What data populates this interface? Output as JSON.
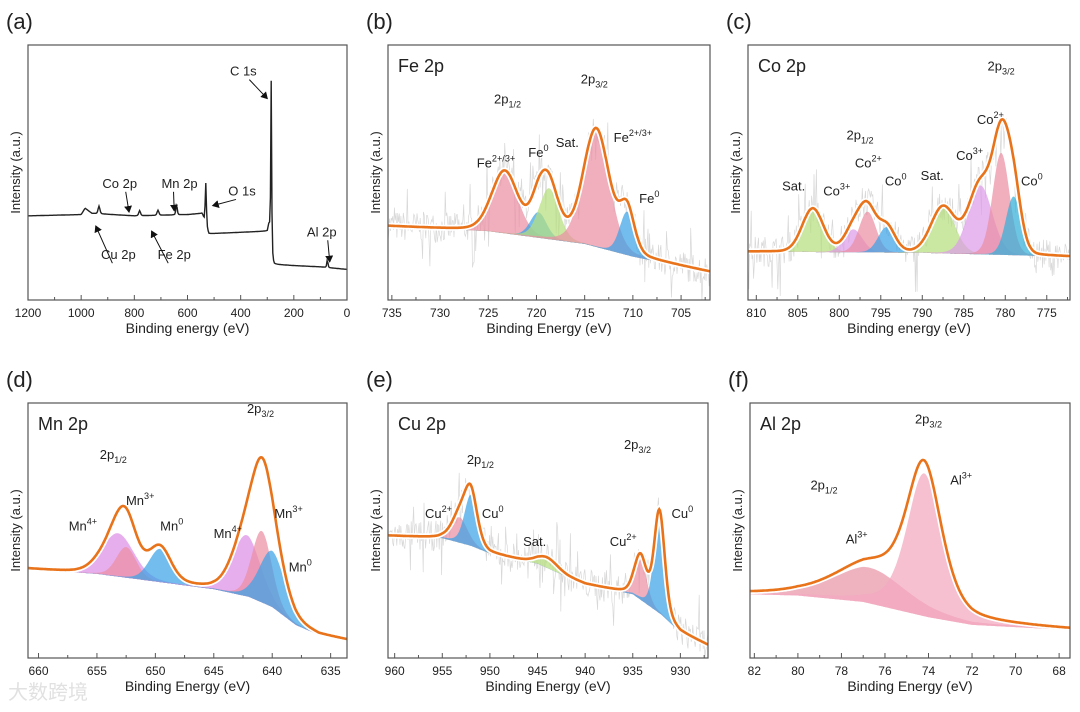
{
  "watermark": "大数跨境",
  "chart_data": [
    {
      "panel": "(a)",
      "type": "line",
      "title": "",
      "xlabel": "Binding energy (eV)",
      "ylabel": "Intensity (a.u.)",
      "xlim": [
        1200,
        0
      ],
      "ylim": [
        0,
        1
      ],
      "xticks": [
        1200,
        1000,
        800,
        600,
        400,
        200,
        0
      ],
      "fill": false,
      "line_color": "#222222",
      "noise": false,
      "eta": 0.3,
      "background": [
        [
          1200,
          0.33
        ],
        [
          1000,
          0.335
        ],
        [
          985,
          0.36
        ],
        [
          960,
          0.34
        ],
        [
          800,
          0.33
        ],
        [
          600,
          0.335
        ],
        [
          545,
          0.34
        ],
        [
          528,
          0.29
        ],
        [
          520,
          0.26
        ],
        [
          300,
          0.27
        ],
        [
          292,
          0.3
        ],
        [
          285,
          0.2
        ],
        [
          275,
          0.14
        ],
        [
          200,
          0.135
        ],
        [
          100,
          0.13
        ],
        [
          0,
          0.12
        ]
      ],
      "components": [
        {
          "name": "C 1s",
          "center": 285,
          "height": 0.66,
          "fwhm": 4
        },
        {
          "name": "O 1s",
          "center": 531,
          "height": 0.16,
          "fwhm": 5
        },
        {
          "name": "Cu 2p",
          "center": 933,
          "height": 0.03,
          "fwhm": 8
        },
        {
          "name": "Co 2p",
          "center": 780,
          "height": 0.02,
          "fwhm": 8
        },
        {
          "name": "Mn 2p",
          "center": 641,
          "height": 0.04,
          "fwhm": 6
        },
        {
          "name": "Fe 2p",
          "center": 711,
          "height": 0.02,
          "fwhm": 8
        },
        {
          "name": "Al 2p",
          "center": 74,
          "height": 0.03,
          "fwhm": 5
        }
      ],
      "annotations": [
        {
          "text": "C 1s",
          "x": 390,
          "y": 0.88,
          "arrow_to": [
            300,
            0.79
          ]
        },
        {
          "text": "O 1s",
          "x": 395,
          "y": 0.41,
          "arrow_to": [
            505,
            0.37
          ]
        },
        {
          "text": "Mn 2p",
          "x": 630,
          "y": 0.44,
          "arrow_to": [
            650,
            0.35
          ]
        },
        {
          "text": "Co 2p",
          "x": 855,
          "y": 0.44,
          "arrow_to": [
            820,
            0.345
          ]
        },
        {
          "text": "Cu 2p",
          "x": 860,
          "y": 0.16,
          "arrow_to": [
            945,
            0.29
          ]
        },
        {
          "text": "Fe 2p",
          "x": 650,
          "y": 0.16,
          "arrow_to": [
            735,
            0.27
          ]
        },
        {
          "text": "Al 2p",
          "x": 95,
          "y": 0.25,
          "arrow_to": [
            65,
            0.15
          ]
        }
      ]
    },
    {
      "panel": "(b)",
      "type": "line",
      "title": "Fe 2p",
      "xlabel": "Binding Energy (eV)",
      "ylabel": "Intensity (a.u.)",
      "xlim": [
        735.4,
        702
      ],
      "ylim": [
        0,
        1
      ],
      "xticks": [
        735,
        730,
        725,
        720,
        715,
        710,
        705
      ],
      "fill": true,
      "line_color": "#e8731a",
      "noise": true,
      "eta": 0.2,
      "background": [
        [
          735.4,
          0.29
        ],
        [
          725,
          0.27
        ],
        [
          715,
          0.22
        ],
        [
          710,
          0.17
        ],
        [
          702,
          0.11
        ]
      ],
      "components": [
        {
          "name": "Fe2+/3+ 2p1/2",
          "center": 723.3,
          "height": 0.24,
          "fwhm": 3.2,
          "color": "#ec8fa3"
        },
        {
          "name": "Fe0 2p1/2",
          "center": 719.8,
          "height": 0.1,
          "fwhm": 2.0,
          "color": "#3ba3e6"
        },
        {
          "name": "Sat.",
          "center": 718.7,
          "height": 0.2,
          "fwhm": 2.4,
          "color": "#b6df7e"
        },
        {
          "name": "Fe2+/3+ 2p3/2",
          "center": 713.8,
          "height": 0.46,
          "fwhm": 3.2,
          "color": "#ec8fa3"
        },
        {
          "name": "Fe0 2p3/2",
          "center": 710.6,
          "height": 0.17,
          "fwhm": 1.8,
          "color": "#3ba3e6"
        }
      ],
      "annotations": [
        {
          "text": "2p",
          "sub": "1/2",
          "x": 723,
          "y": 0.77
        },
        {
          "text": "2p",
          "sub": "3/2",
          "x": 714,
          "y": 0.85
        },
        {
          "text": "Fe",
          "sup": "2+/3+",
          "x": 724.2,
          "y": 0.52
        },
        {
          "text": "Fe",
          "sup": "0",
          "x": 719.8,
          "y": 0.56
        },
        {
          "text": "Sat.",
          "x": 716.8,
          "y": 0.6
        },
        {
          "text": "Fe",
          "sup": "2+/3+",
          "x": 710,
          "y": 0.62
        },
        {
          "text": "Fe",
          "sup": "0",
          "x": 708.3,
          "y": 0.38
        }
      ]
    },
    {
      "panel": "(c)",
      "type": "line",
      "title": "Co 2p",
      "xlabel": "Binding energy (eV)",
      "ylabel": "Intensity (a.u.)",
      "xlim": [
        811,
        772.2
      ],
      "ylim": [
        0,
        1
      ],
      "xticks": [
        810,
        805,
        800,
        795,
        790,
        785,
        780,
        775
      ],
      "fill": true,
      "line_color": "#e8731a",
      "noise": true,
      "eta": 0.1,
      "background": [
        [
          811,
          0.19
        ],
        [
          790,
          0.185
        ],
        [
          772.2,
          0.17
        ]
      ],
      "components": [
        {
          "name": "Sat.",
          "center": 803.2,
          "height": 0.17,
          "fwhm": 3.0,
          "color": "#b6df7e"
        },
        {
          "name": "Co3+",
          "center": 798.3,
          "height": 0.09,
          "fwhm": 2.6,
          "color": "#de9de9"
        },
        {
          "name": "Co2+",
          "center": 796.6,
          "height": 0.16,
          "fwhm": 2.4,
          "color": "#ec8fa3"
        },
        {
          "name": "Co0",
          "center": 794.3,
          "height": 0.1,
          "fwhm": 2.4,
          "color": "#3ba3e6"
        },
        {
          "name": "Sat.",
          "center": 787.5,
          "height": 0.18,
          "fwhm": 3.4,
          "color": "#b6df7e"
        },
        {
          "name": "Co3+",
          "center": 783,
          "height": 0.27,
          "fwhm": 3.4,
          "color": "#de9de9"
        },
        {
          "name": "Co2+",
          "center": 780.5,
          "height": 0.4,
          "fwhm": 2.4,
          "color": "#ec8fa3"
        },
        {
          "name": "Co0",
          "center": 779,
          "height": 0.23,
          "fwhm": 2.2,
          "color": "#33b0d8"
        }
      ],
      "annotations": [
        {
          "text": "2p",
          "sub": "3/2",
          "x": 780.5,
          "y": 0.9
        },
        {
          "text": "2p",
          "sub": "1/2",
          "x": 797.5,
          "y": 0.63
        },
        {
          "text": "Sat.",
          "x": 805.5,
          "y": 0.43
        },
        {
          "text": "Co",
          "sup": "3+",
          "x": 800.3,
          "y": 0.41
        },
        {
          "text": "Co",
          "sup": "2+",
          "x": 796.5,
          "y": 0.52
        },
        {
          "text": "Co",
          "sup": "0",
          "x": 793.2,
          "y": 0.45
        },
        {
          "text": "Sat.",
          "x": 788.8,
          "y": 0.47
        },
        {
          "text": "Co",
          "sup": "3+",
          "x": 784.3,
          "y": 0.55
        },
        {
          "text": "Co",
          "sup": "2+",
          "x": 781.8,
          "y": 0.69
        },
        {
          "text": "Co",
          "sup": "0",
          "x": 776.8,
          "y": 0.45
        }
      ]
    },
    {
      "panel": "(d)",
      "type": "line",
      "title": "Mn 2p",
      "xlabel": "Binding Energy (eV)",
      "ylabel": "Intensity (a.u.)",
      "xlim": [
        660.9,
        633.6
      ],
      "ylim": [
        0,
        1
      ],
      "xticks": [
        660,
        655,
        650,
        645,
        640,
        635
      ],
      "fill": true,
      "line_color": "#e8731a",
      "noise": false,
      "eta": 0.2,
      "background": [
        [
          660.9,
          0.35
        ],
        [
          655,
          0.33
        ],
        [
          650,
          0.3
        ],
        [
          645,
          0.27
        ],
        [
          642,
          0.24
        ],
        [
          640,
          0.2
        ],
        [
          638,
          0.13
        ],
        [
          636,
          0.09
        ],
        [
          633.6,
          0.07
        ]
      ],
      "components": [
        {
          "name": "Mn4+ 2p1/2",
          "center": 653.2,
          "height": 0.17,
          "fwhm": 3.2,
          "color": "#de8fe6"
        },
        {
          "name": "Mn3+ 2p1/2",
          "center": 652.5,
          "height": 0.12,
          "fwhm": 2.0,
          "color": "#ec8fa3"
        },
        {
          "name": "Mn0 2p1/2",
          "center": 649.6,
          "height": 0.13,
          "fwhm": 2.2,
          "color": "#3ba3e6"
        },
        {
          "name": "Mn4+ 2p3/2",
          "center": 642.2,
          "height": 0.24,
          "fwhm": 2.8,
          "color": "#de8fe6"
        },
        {
          "name": "Mn3+ 2p3/2",
          "center": 640.9,
          "height": 0.28,
          "fwhm": 2.0,
          "color": "#ec8fa3"
        },
        {
          "name": "Mn0 2p3/2",
          "center": 640,
          "height": 0.22,
          "fwhm": 2.6,
          "color": "#3ba3e6"
        }
      ],
      "annotations": [
        {
          "text": "2p",
          "sub": "1/2",
          "x": 653.6,
          "y": 0.78
        },
        {
          "text": "2p",
          "sub": "3/2",
          "x": 641,
          "y": 0.96
        },
        {
          "text": "Mn",
          "sup": "4+",
          "x": 656.2,
          "y": 0.5
        },
        {
          "text": "Mn",
          "sup": "3+",
          "x": 651.3,
          "y": 0.6
        },
        {
          "text": "Mn",
          "sup": "0",
          "x": 648.6,
          "y": 0.5
        },
        {
          "text": "Mn",
          "sup": "4+",
          "x": 643.8,
          "y": 0.47
        },
        {
          "text": "Mn",
          "sup": "3+",
          "x": 638.6,
          "y": 0.55
        },
        {
          "text": "Mn",
          "sup": "0",
          "x": 637.6,
          "y": 0.34
        }
      ]
    },
    {
      "panel": "(e)",
      "type": "line",
      "title": "Cu 2p",
      "xlabel": "Binding Energy (eV)",
      "ylabel": "Intensity (a.u.)",
      "xlim": [
        960.7,
        927.1
      ],
      "ylim": [
        0,
        1
      ],
      "xticks": [
        960,
        955,
        950,
        945,
        940,
        935,
        930
      ],
      "fill": true,
      "line_color": "#e8731a",
      "noise": true,
      "eta": 0.3,
      "background": [
        [
          960.7,
          0.48
        ],
        [
          955,
          0.47
        ],
        [
          952,
          0.44
        ],
        [
          950,
          0.41
        ],
        [
          945,
          0.37
        ],
        [
          942,
          0.32
        ],
        [
          940,
          0.29
        ],
        [
          935,
          0.25
        ],
        [
          932,
          0.17
        ],
        [
          930,
          0.1
        ],
        [
          927.1,
          0.05
        ]
      ],
      "components": [
        {
          "name": "Cu2+ 2p1/2",
          "center": 953.2,
          "height": 0.1,
          "fwhm": 2.0,
          "color": "#ec8fa3"
        },
        {
          "name": "Cu0 2p1/2",
          "center": 952,
          "height": 0.2,
          "fwhm": 1.6,
          "color": "#3ba3e6"
        },
        {
          "name": "Sat.",
          "center": 944,
          "height": 0.04,
          "fwhm": 2.6,
          "color": "#b6df7e"
        },
        {
          "name": "Cu2+ 2p3/2",
          "center": 934.2,
          "height": 0.17,
          "fwhm": 1.5,
          "color": "#ec8fa3"
        },
        {
          "name": "Cu0 2p3/2",
          "center": 932.2,
          "height": 0.4,
          "fwhm": 1.3,
          "color": "#3ba3e6"
        }
      ],
      "annotations": [
        {
          "text": "2p",
          "sub": "1/2",
          "x": 951,
          "y": 0.76
        },
        {
          "text": "2p",
          "sub": "3/2",
          "x": 934.5,
          "y": 0.82
        },
        {
          "text": "Cu",
          "sup": "2+",
          "x": 955.4,
          "y": 0.55
        },
        {
          "text": "Cu",
          "sup": "0",
          "x": 949.7,
          "y": 0.55
        },
        {
          "text": "Sat.",
          "x": 945.3,
          "y": 0.44
        },
        {
          "text": "Cu",
          "sup": "2+",
          "x": 936,
          "y": 0.44
        },
        {
          "text": "Cu",
          "sup": "0",
          "x": 929.8,
          "y": 0.55
        }
      ]
    },
    {
      "panel": "(f)",
      "type": "line",
      "title": "Al 2p",
      "xlabel": "Binding Energy (eV)",
      "ylabel": "Intensity (a.u.)",
      "xlim": [
        82.2,
        67.5
      ],
      "ylim": [
        0,
        1
      ],
      "xticks": [
        82,
        80,
        78,
        76,
        74,
        72,
        70,
        68
      ],
      "fill": true,
      "line_color": "#e8731a",
      "noise": false,
      "eta": 0.5,
      "background": [
        [
          82.2,
          0.25
        ],
        [
          80,
          0.245
        ],
        [
          77,
          0.22
        ],
        [
          74,
          0.16
        ],
        [
          72,
          0.13
        ],
        [
          67.5,
          0.11
        ]
      ],
      "components": [
        {
          "name": "Al3+ 2p1/2",
          "center": 76.7,
          "height": 0.14,
          "fwhm": 4.0,
          "color": "#e995a8"
        },
        {
          "name": "Al3+ 2p3/2",
          "center": 74.2,
          "height": 0.56,
          "fwhm": 1.9,
          "color": "#f3a7bf"
        }
      ],
      "annotations": [
        {
          "text": "2p",
          "sub": "3/2",
          "x": 74,
          "y": 0.92
        },
        {
          "text": "2p",
          "sub": "1/2",
          "x": 78.8,
          "y": 0.66
        },
        {
          "text": "Al",
          "sup": "3+",
          "x": 77.3,
          "y": 0.45
        },
        {
          "text": "Al",
          "sup": "3+",
          "x": 72.5,
          "y": 0.68
        }
      ]
    }
  ]
}
